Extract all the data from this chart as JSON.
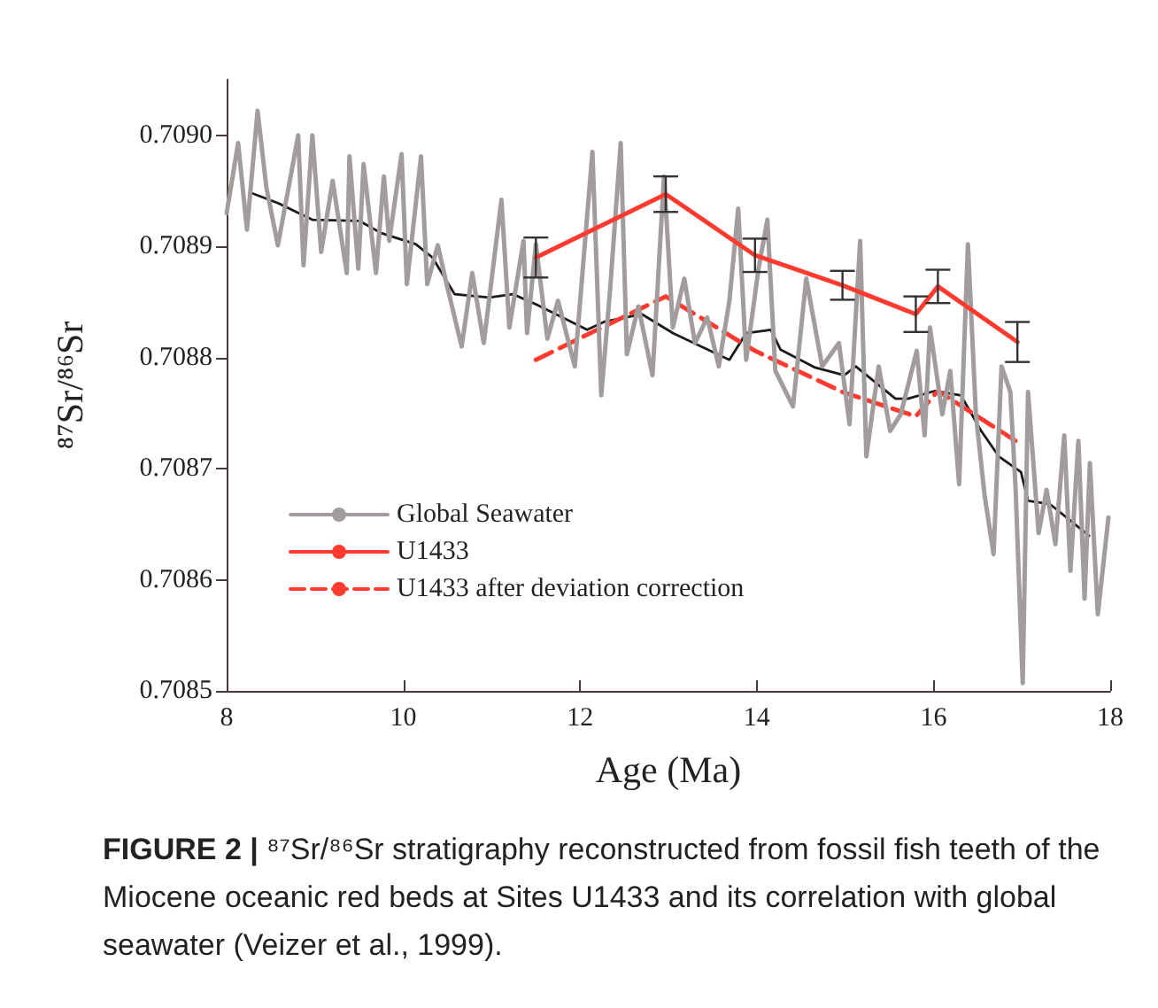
{
  "chart_data": {
    "type": "line",
    "xlabel": "Age (Ma)",
    "ylabel": "⁸⁷Sr/⁸⁶Sr",
    "xlim": [
      8,
      18
    ],
    "xticks": [
      8,
      10,
      12,
      14,
      16,
      18
    ],
    "ylim": [
      0.7085,
      0.70905
    ],
    "yticks": [
      0.7085,
      0.7086,
      0.7087,
      0.7088,
      0.7089,
      {
        "value": 0.709,
        "label": "0.7090"
      }
    ],
    "grid": false,
    "legend": "left",
    "marker": "none",
    "annotations": [
      "FIGURE 2 |",
      "⁸⁷Sr/⁸⁶Sr stratigraphy reconstructed from fossil fish teeth of the Miocene oceanic red beds at Sites U1433 and its correlation with global seawater (Veizer et al., 1999)."
    ],
    "series": [
      {
        "name": "Global Seawater",
        "color": "#a39c9c",
        "line_style": "solid",
        "x": [
          8,
          8.13,
          8.23,
          8.35,
          8.45,
          8.58,
          8.81,
          8.87,
          8.97,
          9.07,
          9.2,
          9.36,
          9.39,
          9.49,
          9.55,
          9.69,
          9.78,
          9.84,
          9.98,
          10.04,
          10.2,
          10.27,
          10.39,
          10.49,
          10.66,
          10.78,
          10.91,
          11.11,
          11.2,
          11.36,
          11.4,
          11.5,
          11.63,
          11.75,
          11.94,
          12.14,
          12.24,
          12.34,
          12.46,
          12.53,
          12.66,
          12.82,
          12.95,
          13.05,
          13.18,
          13.3,
          13.44,
          13.57,
          13.69,
          13.79,
          13.88,
          14.02,
          14.12,
          14.21,
          14.41,
          14.56,
          14.74,
          14.93,
          15.05,
          15.17,
          15.24,
          15.38,
          15.51,
          15.63,
          15.81,
          15.9,
          15.96,
          16.1,
          16.19,
          16.29,
          16.39,
          16.48,
          16.58,
          16.68,
          16.77,
          16.87,
          16.93,
          17.01,
          17.07,
          17.19,
          17.28,
          17.38,
          17.48,
          17.55,
          17.64,
          17.71,
          17.77,
          17.86,
          17.98
        ],
        "values": [
          0.70893,
          0.708993,
          0.708915,
          0.709022,
          0.708953,
          0.708901,
          0.709,
          0.708883,
          0.709,
          0.708895,
          0.708959,
          0.708876,
          0.708981,
          0.70888,
          0.708974,
          0.708876,
          0.708963,
          0.708905,
          0.708983,
          0.708866,
          0.708981,
          0.708866,
          0.708901,
          0.708866,
          0.70881,
          0.708876,
          0.708813,
          0.708942,
          0.708827,
          0.708905,
          0.708822,
          0.708902,
          0.708817,
          0.708851,
          0.708792,
          0.708985,
          0.708766,
          0.708861,
          0.708993,
          0.708803,
          0.708846,
          0.708784,
          0.708963,
          0.708827,
          0.708871,
          0.708813,
          0.708836,
          0.708792,
          0.708851,
          0.708934,
          0.708798,
          0.70888,
          0.708924,
          0.708788,
          0.708756,
          0.708871,
          0.708792,
          0.708813,
          0.70874,
          0.708905,
          0.708711,
          0.708792,
          0.708734,
          0.708749,
          0.708806,
          0.70873,
          0.708827,
          0.708749,
          0.708788,
          0.708686,
          0.708902,
          0.708749,
          0.708675,
          0.708623,
          0.708792,
          0.708769,
          0.708681,
          0.708507,
          0.708769,
          0.708642,
          0.708681,
          0.708632,
          0.70873,
          0.708608,
          0.708725,
          0.708583,
          0.708705,
          0.708569,
          0.708656
        ]
      },
      {
        "color": "#1a1a1a",
        "line_style": "solid",
        "x": [
          8.25,
          8.58,
          8.97,
          9.5,
          9.75,
          10.14,
          10.33,
          10.58,
          10.97,
          11.24,
          11.5,
          12.08,
          12.27,
          12.7,
          13.05,
          13.69,
          13.88,
          14.16,
          14.27,
          14.66,
          14.99,
          15.12,
          15.57,
          15.71,
          16.02,
          16.31,
          16.54,
          16.74,
          16.99,
          17.07,
          17.32,
          17.57,
          17.77
        ],
        "values": [
          0.708949,
          0.708939,
          0.708924,
          0.708923,
          0.708912,
          0.708902,
          0.70889,
          0.708857,
          0.708854,
          0.708857,
          0.708848,
          0.708825,
          0.708832,
          0.708839,
          0.708822,
          0.708798,
          0.708822,
          0.708825,
          0.708807,
          0.708791,
          0.708784,
          0.708792,
          0.708763,
          0.708763,
          0.70877,
          0.708766,
          0.708734,
          0.708711,
          0.708697,
          0.708671,
          0.708668,
          0.708652,
          0.708639
        ]
      },
      {
        "name": "U1433",
        "color": "#ff3b2f",
        "line_style": "solid",
        "x": [
          11.5,
          12.97,
          13.98,
          14.97,
          15.8,
          16.05,
          16.95
        ],
        "values": [
          0.70889,
          0.708947,
          0.708892,
          0.708865,
          0.708839,
          0.708864,
          0.708814
        ],
        "errors": [
          1.8e-05,
          1.6e-05,
          1.5e-05,
          1.3e-05,
          1.6e-05,
          1.5e-05,
          1.8e-05
        ]
      },
      {
        "name": "U1433 after deviation correction",
        "color": "#ff3b2f",
        "line_style": "dashed",
        "x": [
          11.5,
          12.97,
          13.98,
          14.97,
          15.8,
          16.05,
          16.95
        ],
        "values": [
          0.708798,
          0.708855,
          0.708806,
          0.708769,
          0.708747,
          0.70877,
          0.708724
        ]
      }
    ]
  }
}
